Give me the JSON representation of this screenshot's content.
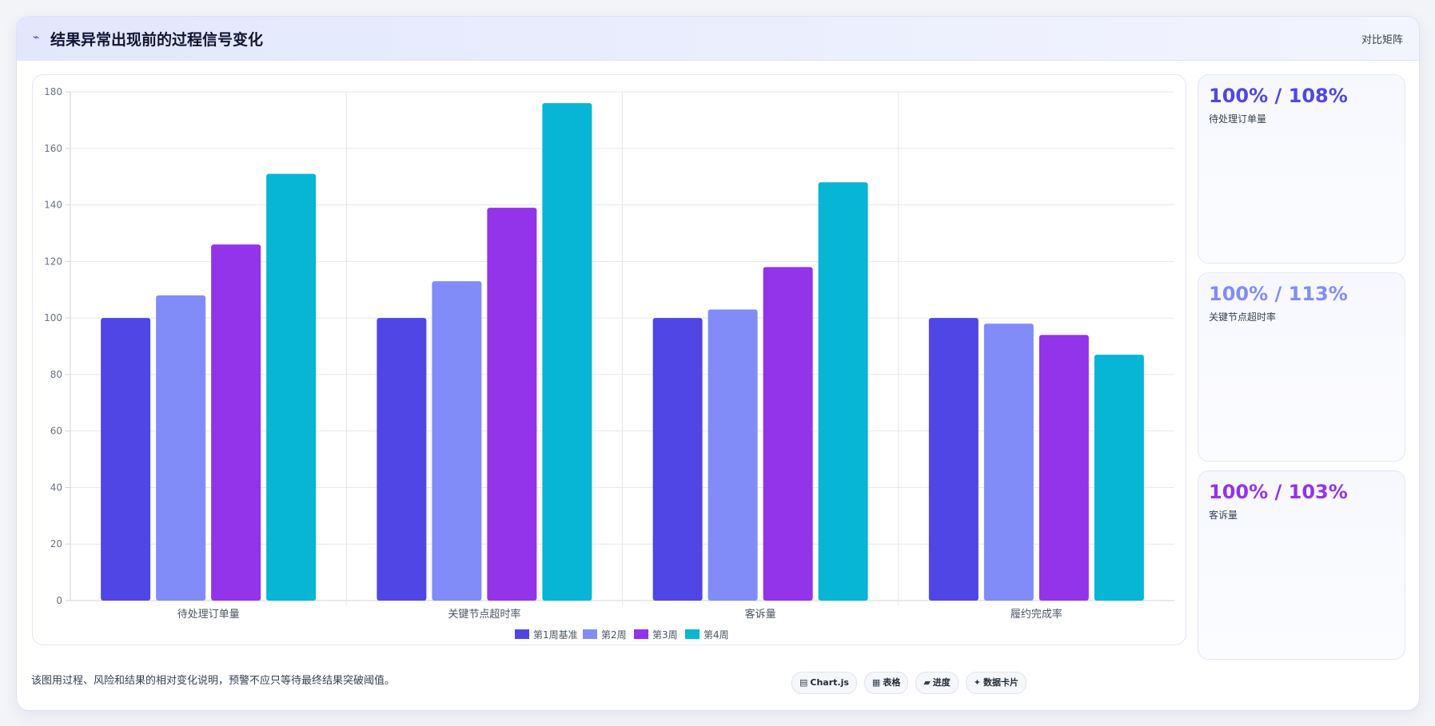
{
  "header": {
    "logo_icon": "chart-trend-icon",
    "title": "结果异常出现前的过程信号变化",
    "tag": "对比矩阵"
  },
  "colors": {
    "s1": "#4f46e5",
    "s2": "#818cf8",
    "s3": "#9333ea",
    "s4": "#06b6d4"
  },
  "chart_data": {
    "type": "bar",
    "categories": [
      "待处理订单量",
      "关键节点超时率",
      "客诉量",
      "履约完成率"
    ],
    "series": [
      {
        "name": "第1周基准",
        "values": [
          100,
          100,
          100,
          100
        ]
      },
      {
        "name": "第2周",
        "values": [
          108,
          113,
          103,
          98
        ]
      },
      {
        "name": "第3周",
        "values": [
          126,
          139,
          118,
          94
        ]
      },
      {
        "name": "第4周",
        "values": [
          151,
          176,
          148,
          87
        ]
      }
    ],
    "ylim": [
      0,
      180
    ],
    "yticks": [
      "0",
      "20",
      "40",
      "60",
      "80",
      "100",
      "120",
      "140",
      "160",
      "180"
    ],
    "grid": true,
    "legend_position": "bottom"
  },
  "side_cards": [
    {
      "value": "100% / 108%",
      "label": "待处理订单量",
      "color": "#4f46e5"
    },
    {
      "value": "100% / 113%",
      "label": "关键节点超时率",
      "color": "#818cf8"
    },
    {
      "value": "100% / 103%",
      "label": "客诉量",
      "color": "#9333ea"
    }
  ],
  "footnote": "该图用过程、风险和结果的相对变化说明，预警不应只等待最终结果突破阈值。",
  "pills": [
    {
      "icon": "chart-icon",
      "glyph": "▤",
      "label": "Chart.js"
    },
    {
      "icon": "table-icon",
      "glyph": "▦",
      "label": "表格"
    },
    {
      "icon": "progress-icon",
      "glyph": "▰",
      "label": "进度"
    },
    {
      "icon": "card-icon",
      "glyph": "✦",
      "label": "数据卡片"
    }
  ]
}
